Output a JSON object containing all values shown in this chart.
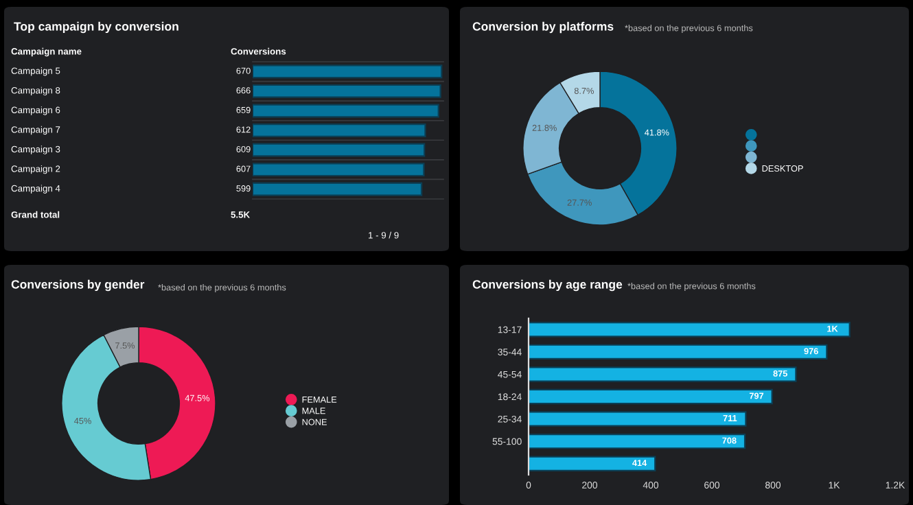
{
  "chart_data": [
    {
      "type": "bar",
      "orientation": "horizontal",
      "title": "Top campaign by conversion",
      "ylabel": "Campaign name",
      "xlabel": "Conversions",
      "categories": [
        "Campaign 5",
        "Campaign 8",
        "Campaign 6",
        "Campaign 7",
        "Campaign 3",
        "Campaign 2",
        "Campaign 4"
      ],
      "values": [
        670,
        666,
        659,
        612,
        609,
        607,
        599
      ],
      "color": "#05739b",
      "data_labels": true,
      "annotations": [
        "Grand total",
        "5.5K",
        "1 - 9 / 9"
      ]
    },
    {
      "type": "donut",
      "title": "Conversion by platforms",
      "subtitle": "*based on the previous 6 months",
      "categories": [
        null,
        null,
        null,
        "DESKTOP"
      ],
      "values": [
        41.8,
        27.7,
        21.8,
        8.7
      ],
      "colors": [
        "#05739b",
        "#3f97bd",
        "#7fb6d3",
        "#b4d8e8"
      ],
      "value_labels": [
        "41.8%",
        "27.7%",
        "21.8%",
        "8.7%"
      ],
      "legend": "right"
    },
    {
      "type": "donut",
      "title": "Conversions by gender",
      "subtitle": "*based on the previous 6 months",
      "categories": [
        "FEMALE",
        "MALE",
        "NONE"
      ],
      "values": [
        47.5,
        45,
        7.5
      ],
      "colors": [
        "#ee1a55",
        "#66cbd2",
        "#9aa0a6"
      ],
      "value_labels": [
        "47.5%",
        "45%",
        "7.5%"
      ],
      "legend": "right"
    },
    {
      "type": "bar",
      "orientation": "horizontal",
      "title": "Conversions by age range",
      "subtitle": "*based on the previous 6 months",
      "categories": [
        "13-17",
        "35-44",
        "45-54",
        "18-24",
        "25-34",
        "55-100",
        null
      ],
      "values": [
        1051,
        976,
        875,
        797,
        711,
        708,
        414
      ],
      "color": "#14b2e3",
      "value_labels": [
        "1K",
        "976",
        "875",
        "797",
        "711",
        "708",
        "414"
      ],
      "xlim": [
        0,
        1200
      ],
      "xticks": [
        0,
        200,
        400,
        600,
        800,
        {
          "value": 1000,
          "label": "1K"
        },
        {
          "value": 1200,
          "label": "1.2K"
        }
      ]
    }
  ]
}
